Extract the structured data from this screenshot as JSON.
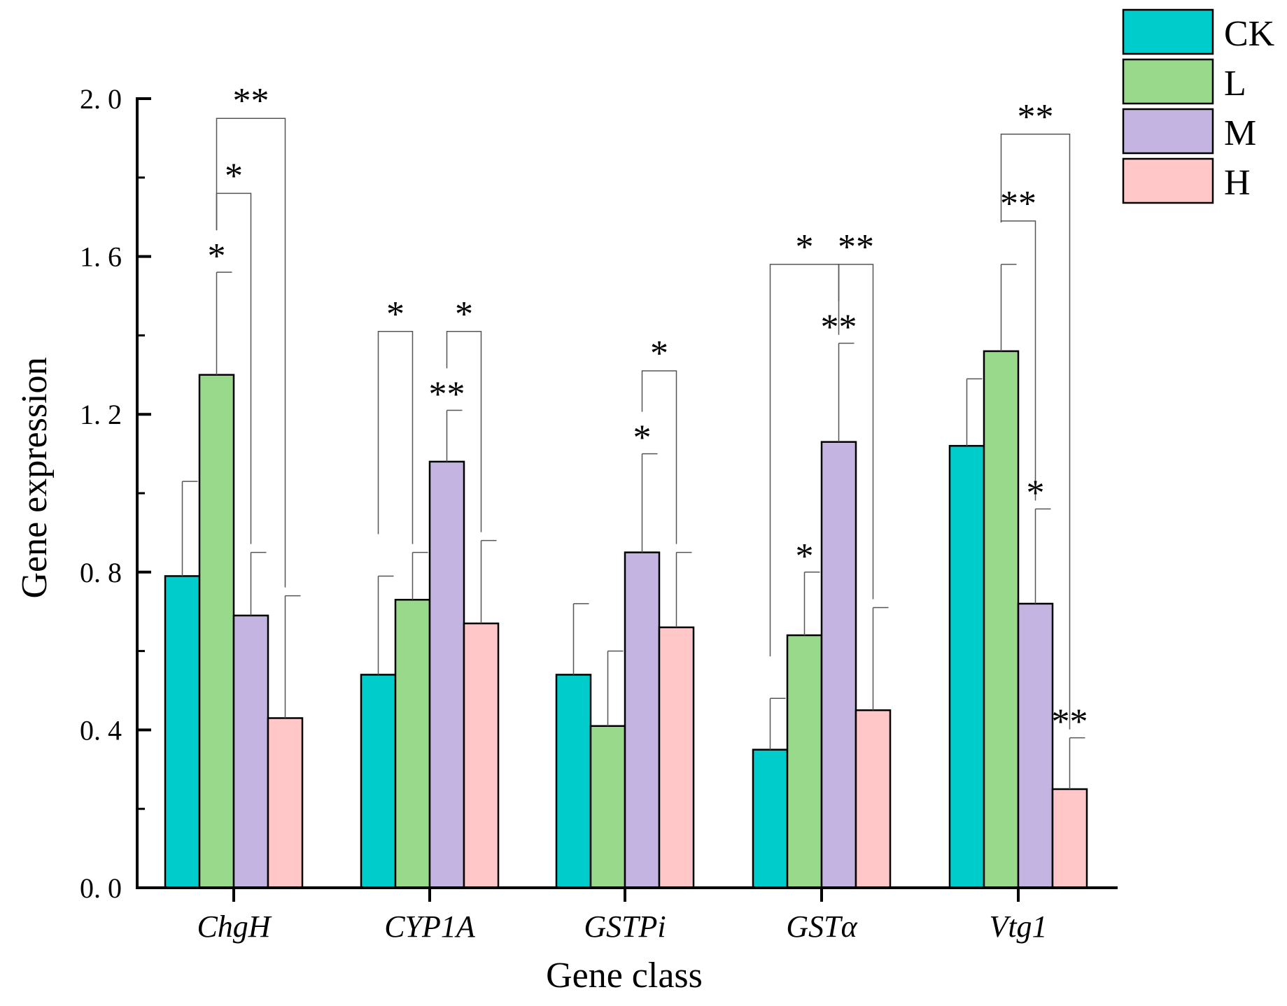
{
  "chart_data": {
    "type": "bar",
    "title": "",
    "xlabel": "Gene class",
    "ylabel": "Gene expression",
    "ylim": [
      0,
      2.0
    ],
    "yticks": [
      "0. 0",
      "0. 4",
      "0. 8",
      "1. 2",
      "1. 6",
      "2. 0"
    ],
    "ytick_values": [
      0,
      0.4,
      0.8,
      1.2,
      1.6,
      2.0
    ],
    "categories": [
      "ChgH",
      "CYP1A",
      "GSTPi",
      "GSTα",
      "Vtg1"
    ],
    "legend_position": "top-right",
    "series": [
      {
        "name": "CK",
        "color": "#00cccc",
        "values": [
          0.79,
          0.54,
          0.54,
          0.35,
          1.12
        ],
        "errors": [
          0.24,
          0.25,
          0.18,
          0.13,
          0.17
        ]
      },
      {
        "name": "L",
        "color": "#99d98c",
        "values": [
          1.3,
          0.73,
          0.41,
          0.64,
          1.36
        ],
        "errors": [
          0.26,
          0.12,
          0.19,
          0.16,
          0.22
        ]
      },
      {
        "name": "M",
        "color": "#c3b4e2",
        "values": [
          0.69,
          1.08,
          0.85,
          1.13,
          0.72
        ],
        "errors": [
          0.16,
          0.13,
          0.25,
          0.25,
          0.24
        ]
      },
      {
        "name": "H",
        "color": "#ffc7c7",
        "values": [
          0.43,
          0.67,
          0.66,
          0.45,
          0.25
        ],
        "errors": [
          0.31,
          0.21,
          0.19,
          0.26,
          0.13
        ]
      }
    ],
    "bar_stars": [
      {
        "cat": 0,
        "ser": 1,
        "label": "*"
      },
      {
        "cat": 1,
        "ser": 2,
        "label": "**"
      },
      {
        "cat": 2,
        "ser": 2,
        "label": "*"
      },
      {
        "cat": 3,
        "ser": 1,
        "label": "*"
      },
      {
        "cat": 3,
        "ser": 2,
        "label": "**"
      },
      {
        "cat": 4,
        "ser": 2,
        "label": "*"
      },
      {
        "cat": 4,
        "ser": 3,
        "label": "**"
      }
    ],
    "brackets": [
      {
        "cat": 0,
        "from": 1,
        "to": 2,
        "y": 1.76,
        "label": "*"
      },
      {
        "cat": 0,
        "from": 1,
        "to": 3,
        "y": 1.95,
        "label": "**"
      },
      {
        "cat": 1,
        "from": 0,
        "to": 1,
        "y": 1.41,
        "label": "*"
      },
      {
        "cat": 1,
        "from": 2,
        "to": 3,
        "y": 1.41,
        "label": "*"
      },
      {
        "cat": 2,
        "from": 2,
        "to": 3,
        "y": 1.31,
        "label": "*"
      },
      {
        "cat": 3,
        "from": 0,
        "to": 2,
        "y": 1.58,
        "label": "*"
      },
      {
        "cat": 3,
        "from": 2,
        "to": 3,
        "y": 1.58,
        "label": "**"
      },
      {
        "cat": 4,
        "from": 1,
        "to": 2,
        "y": 1.69,
        "label": "**"
      },
      {
        "cat": 4,
        "from": 1,
        "to": 3,
        "y": 1.91,
        "label": "**"
      }
    ]
  }
}
